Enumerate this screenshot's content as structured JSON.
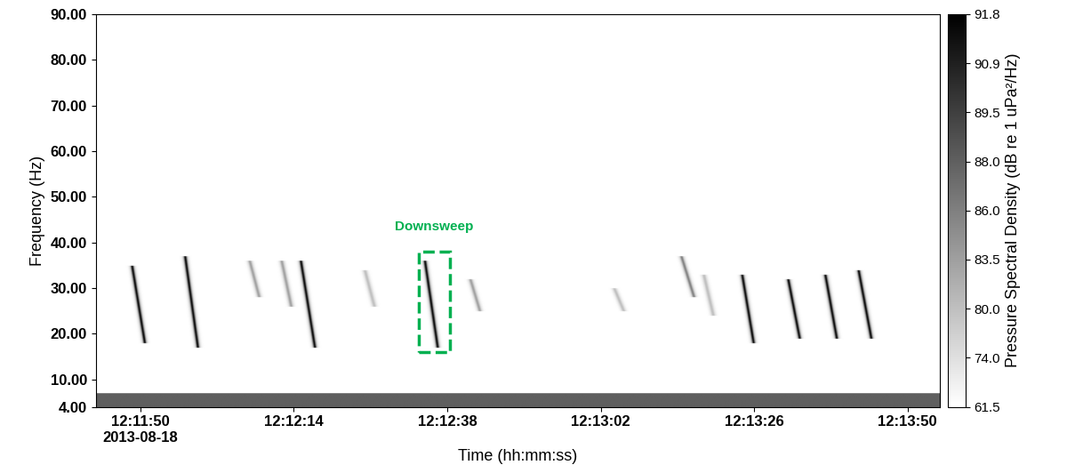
{
  "chart_data": {
    "type": "spectrogram",
    "xlabel": "Time (hh:mm:ss)",
    "ylabel": "Frequency (Hz)",
    "xlim": [
      43903,
      44035
    ],
    "xticks": [
      {
        "value": 43910,
        "label": "12:11:50\n2013-08-18"
      },
      {
        "value": 43934,
        "label": "12:12:14"
      },
      {
        "value": 43958,
        "label": "12:12:38"
      },
      {
        "value": 43982,
        "label": "12:13:02"
      },
      {
        "value": 44006,
        "label": "12:13:26"
      },
      {
        "value": 44030,
        "label": "12:13:50"
      }
    ],
    "ylim": [
      4,
      90
    ],
    "yticks": [
      {
        "value": 4,
        "label": "4.00"
      },
      {
        "value": 10,
        "label": "10.00"
      },
      {
        "value": 20,
        "label": "20.00"
      },
      {
        "value": 30,
        "label": "30.00"
      },
      {
        "value": 40,
        "label": "40.00"
      },
      {
        "value": 50,
        "label": "50.00"
      },
      {
        "value": 60,
        "label": "60.00"
      },
      {
        "value": 70,
        "label": "70.00"
      },
      {
        "value": 80,
        "label": "80.00"
      },
      {
        "value": 90,
        "label": "90.00"
      }
    ],
    "colorbar_label": "Pressure Spectral Density (dB re 1 uPa²/Hz)",
    "colorbar_range": [
      61.5,
      91.8
    ],
    "colorbar_ticks": [
      61.5,
      74.0,
      80.0,
      83.5,
      86.0,
      88.0,
      89.5,
      90.9,
      91.8
    ],
    "background_level": 61.5,
    "noise_band": {
      "f_range": [
        4,
        7
      ],
      "level": 88.0
    },
    "calls": [
      {
        "start": 43908.6,
        "duration": 2.0,
        "f_start": 35,
        "f_end": 18,
        "level": 91.8
      },
      {
        "start": 43916.9,
        "duration": 2.0,
        "f_start": 37,
        "f_end": 17,
        "level": 91.8
      },
      {
        "start": 43935.0,
        "duration": 2.2,
        "f_start": 36,
        "f_end": 17,
        "level": 91.8
      },
      {
        "start": 43954.4,
        "duration": 2.0,
        "f_start": 36,
        "f_end": 17,
        "level": 91.8
      },
      {
        "start": 44004.0,
        "duration": 1.8,
        "f_start": 33,
        "f_end": 18,
        "level": 91.8
      },
      {
        "start": 44011.2,
        "duration": 1.8,
        "f_start": 32,
        "f_end": 19,
        "level": 91.8
      },
      {
        "start": 44017.0,
        "duration": 1.8,
        "f_start": 33,
        "f_end": 19,
        "level": 91.8
      },
      {
        "start": 44022.2,
        "duration": 2.0,
        "f_start": 34,
        "f_end": 19,
        "level": 91.8
      },
      {
        "start": 43927.0,
        "duration": 1.5,
        "f_start": 36,
        "f_end": 28,
        "level": 83.5
      },
      {
        "start": 43932.0,
        "duration": 1.5,
        "f_start": 36,
        "f_end": 26,
        "level": 83.5
      },
      {
        "start": 43945.0,
        "duration": 1.5,
        "f_start": 34,
        "f_end": 26,
        "level": 80.0
      },
      {
        "start": 43961.5,
        "duration": 1.5,
        "f_start": 32,
        "f_end": 25,
        "level": 83.5
      },
      {
        "start": 43984.0,
        "duration": 1.5,
        "f_start": 30,
        "f_end": 25,
        "level": 80.0
      },
      {
        "start": 43994.5,
        "duration": 2.0,
        "f_start": 37,
        "f_end": 28,
        "level": 86.0
      },
      {
        "start": 43998.0,
        "duration": 1.5,
        "f_start": 33,
        "f_end": 24,
        "level": 80.0
      }
    ],
    "annotation": {
      "text": "Downsweep",
      "color": "#00b050",
      "t_range": [
        43953.6,
        43958.4
      ],
      "f_range": [
        16,
        38
      ]
    }
  }
}
